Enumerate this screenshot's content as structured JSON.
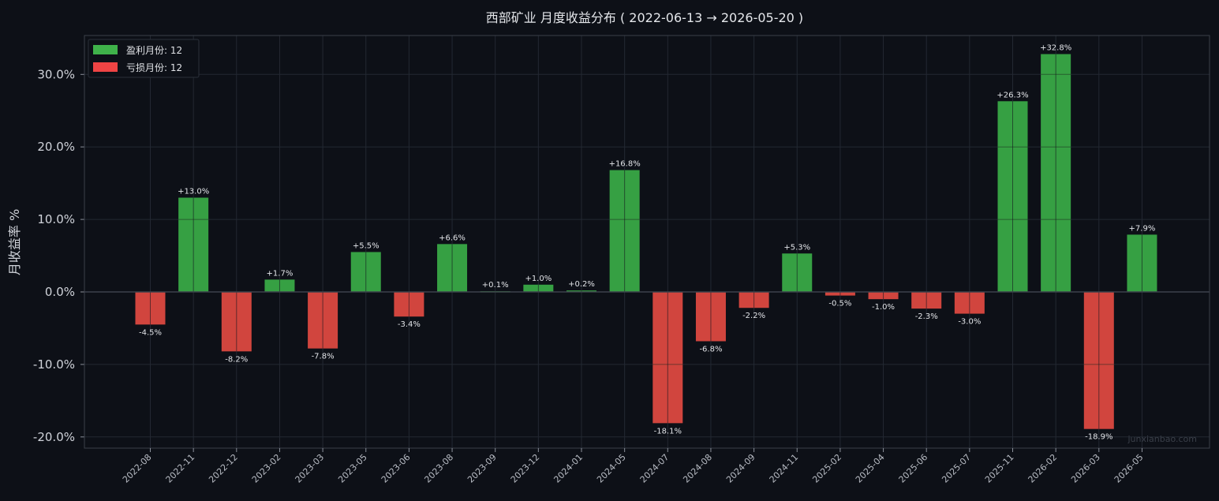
{
  "chart_data": {
    "type": "bar",
    "title": "西部矿业 月度收益分布 ( 2022-06-13 → 2026-05-20 )",
    "ylabel": "月收益率 %",
    "xlabel": "",
    "ylim": [
      -21.5,
      35.5
    ],
    "yticks": [
      -20,
      -10,
      0,
      10,
      20,
      30
    ],
    "ytick_labels": [
      "-20.0%",
      "-10.0%",
      "0.0%",
      "10.0%",
      "20.0%",
      "30.0%"
    ],
    "grid": true,
    "legend_position": "top-left",
    "categories": [
      "2022-08",
      "2022-11",
      "2022-12",
      "2023-02",
      "2023-03",
      "2023-05",
      "2023-06",
      "2023-08",
      "2023-09",
      "2023-12",
      "2024-01",
      "2024-05",
      "2024-07",
      "2024-08",
      "2024-09",
      "2024-11",
      "2025-02",
      "2025-04",
      "2025-06",
      "2025-07",
      "2025-11",
      "2026-02",
      "2026-03",
      "2026-05"
    ],
    "values": [
      -4.5,
      13.0,
      -8.2,
      1.7,
      -7.8,
      5.5,
      -3.4,
      6.6,
      0.1,
      1.0,
      0.2,
      16.8,
      -18.1,
      -6.8,
      -2.2,
      5.3,
      -0.5,
      -1.0,
      -2.3,
      -3.0,
      26.3,
      32.8,
      -18.9,
      7.9
    ],
    "value_labels": [
      "-4.5%",
      "+13.0%",
      "-8.2%",
      "+1.7%",
      "-7.8%",
      "+5.5%",
      "-3.4%",
      "+6.6%",
      "+0.1%",
      "+1.0%",
      "+0.2%",
      "+16.8%",
      "-18.1%",
      "-6.8%",
      "-2.2%",
      "+5.3%",
      "-0.5%",
      "-1.0%",
      "-2.3%",
      "-3.0%",
      "+26.3%",
      "+32.8%",
      "-18.9%",
      "+7.9%"
    ],
    "legend": [
      {
        "label": "盈利月份: 12",
        "color": "#3fb24a"
      },
      {
        "label": "亏损月份: 12",
        "color": "#ef4444"
      }
    ],
    "colors": {
      "positive": "#36a043",
      "negative": "#d1453e",
      "background": "#0d1017",
      "grid": "#232832",
      "axis": "#3a3f4a"
    }
  },
  "watermark": "junxianbao.com"
}
